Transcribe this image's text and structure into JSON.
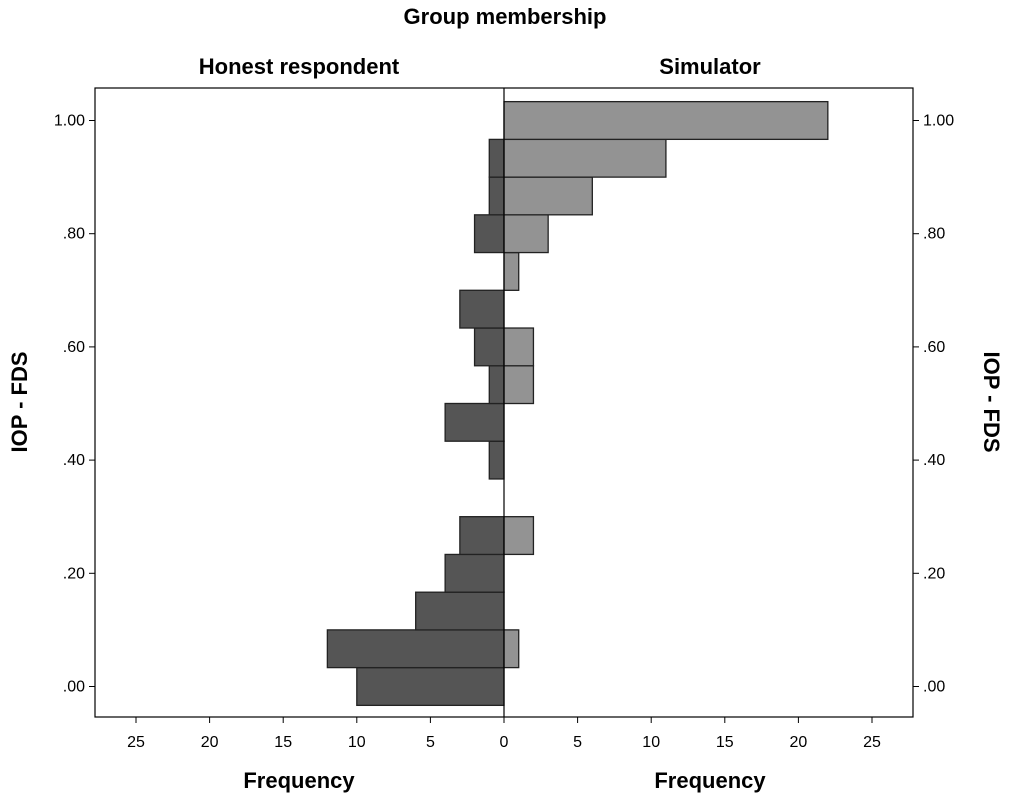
{
  "chart_data": {
    "type": "bar",
    "orientation": "horizontal",
    "layout": "population-pyramid",
    "title": "Group membership",
    "ylabel": "IOP - FDS",
    "xlabel": "Frequency",
    "ylim": [
      -0.05,
      1.05
    ],
    "y_ticks": [
      0.0,
      0.2,
      0.4,
      0.6,
      0.8,
      1.0
    ],
    "y_tick_labels": [
      ".00",
      ".20",
      ".40",
      ".60",
      ".80",
      "1.00"
    ],
    "x_ticks": [
      0,
      5,
      10,
      15,
      20,
      25
    ],
    "x_tick_labels": [
      "0",
      "5",
      "10",
      "15",
      "20",
      "25"
    ],
    "xlim": [
      0,
      27
    ],
    "bin_centers": [
      0.0,
      0.0667,
      0.1333,
      0.2,
      0.2667,
      0.3333,
      0.4,
      0.4667,
      0.5333,
      0.6,
      0.6667,
      0.7333,
      0.8,
      0.8667,
      0.9333,
      1.0
    ],
    "series": [
      {
        "name": "Honest respondent",
        "side": "left",
        "color": "#555555",
        "values": [
          10,
          12,
          6,
          4,
          3,
          0,
          1,
          4,
          1,
          2,
          3,
          0,
          2,
          1,
          1,
          0
        ]
      },
      {
        "name": "Simulator",
        "side": "right",
        "color": "#939393",
        "values": [
          0,
          1,
          0,
          0,
          2,
          0,
          0,
          0,
          2,
          2,
          0,
          1,
          3,
          6,
          11,
          22
        ]
      }
    ],
    "grid": false,
    "bar_edge_color": "#222222"
  }
}
